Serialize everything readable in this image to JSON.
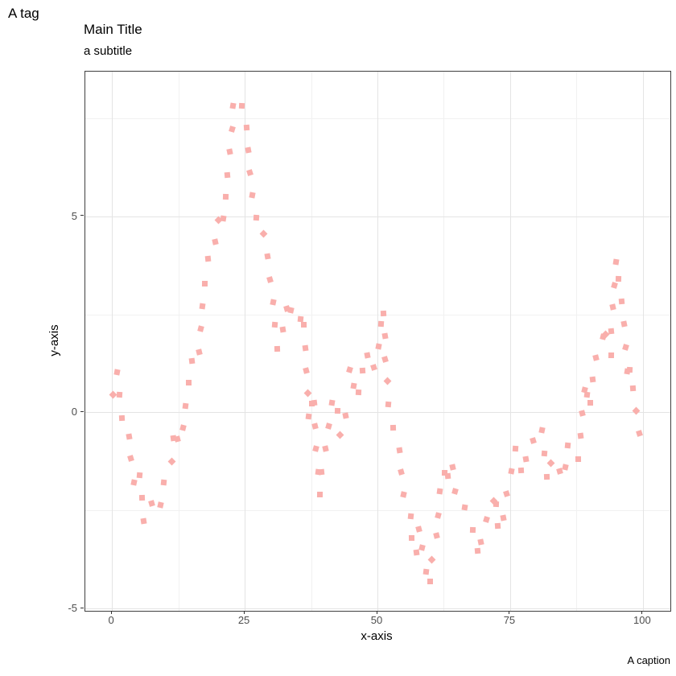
{
  "chart_data": {
    "type": "scatter",
    "tag": "A tag",
    "title": "Main Title",
    "subtitle": "a subtitle",
    "caption": "A caption",
    "xlabel": "x-axis",
    "ylabel": "y-axis",
    "xlim": [
      -5.1,
      105.1
    ],
    "ylim": [
      -5.05,
      8.69
    ],
    "x_major_ticks": [
      0,
      25,
      50,
      75,
      100
    ],
    "x_minor_gridlines": [
      12.5,
      37.5,
      62.5,
      87.5
    ],
    "y_major_ticks": [
      -5,
      0,
      5
    ],
    "y_minor_gridlines": [
      -2.5,
      2.5,
      7.5
    ],
    "grid": true,
    "legend": "none",
    "point_color": "#f9afac",
    "point_shape": "square",
    "points": [
      [
        0.2,
        0.46
      ],
      [
        1.0,
        1.02
      ],
      [
        1.4,
        0.44
      ],
      [
        1.9,
        -0.15
      ],
      [
        3.2,
        -0.61
      ],
      [
        3.6,
        -1.18
      ],
      [
        4.2,
        -1.78
      ],
      [
        5.2,
        -1.61
      ],
      [
        5.6,
        -2.17
      ],
      [
        6.0,
        -2.78
      ],
      [
        7.5,
        -2.33
      ],
      [
        9.1,
        -2.37
      ],
      [
        9.8,
        -1.78
      ],
      [
        11.2,
        -1.26
      ],
      [
        11.5,
        -0.65
      ],
      [
        12.4,
        -0.67
      ],
      [
        13.4,
        -0.4
      ],
      [
        13.9,
        0.17
      ],
      [
        14.5,
        0.75
      ],
      [
        15.1,
        1.32
      ],
      [
        16.4,
        1.53
      ],
      [
        16.8,
        2.13
      ],
      [
        17.1,
        2.71
      ],
      [
        17.5,
        3.29
      ],
      [
        18.1,
        3.91
      ],
      [
        19.5,
        4.35
      ],
      [
        20.0,
        4.91
      ],
      [
        21.0,
        4.94
      ],
      [
        21.5,
        5.5
      ],
      [
        21.8,
        6.06
      ],
      [
        22.2,
        6.64
      ],
      [
        22.6,
        7.22
      ],
      [
        22.8,
        7.81
      ],
      [
        24.4,
        7.82
      ],
      [
        25.3,
        7.26
      ],
      [
        25.6,
        6.68
      ],
      [
        26.0,
        6.11
      ],
      [
        26.4,
        5.53
      ],
      [
        27.2,
        4.97
      ],
      [
        28.6,
        4.55
      ],
      [
        29.3,
        3.97
      ],
      [
        29.8,
        3.39
      ],
      [
        30.3,
        2.82
      ],
      [
        30.7,
        2.23
      ],
      [
        31.2,
        1.61
      ],
      [
        32.2,
        2.11
      ],
      [
        32.9,
        2.64
      ],
      [
        33.7,
        2.6
      ],
      [
        35.5,
        2.37
      ],
      [
        36.2,
        2.23
      ],
      [
        36.5,
        1.64
      ],
      [
        36.6,
        1.06
      ],
      [
        36.9,
        0.49
      ],
      [
        37.0,
        -0.11
      ],
      [
        37.6,
        0.22
      ],
      [
        38.1,
        0.24
      ],
      [
        38.2,
        -0.36
      ],
      [
        38.4,
        -0.93
      ],
      [
        38.8,
        -1.51
      ],
      [
        39.1,
        -2.09
      ],
      [
        39.5,
        -1.52
      ],
      [
        40.2,
        -0.93
      ],
      [
        40.8,
        -0.36
      ],
      [
        41.5,
        0.24
      ],
      [
        42.5,
        0.03
      ],
      [
        43.0,
        -0.57
      ],
      [
        44.0,
        -0.09
      ],
      [
        44.7,
        1.08
      ],
      [
        45.5,
        0.68
      ],
      [
        46.5,
        0.51
      ],
      [
        47.2,
        1.07
      ],
      [
        48.1,
        1.45
      ],
      [
        49.3,
        1.14
      ],
      [
        50.2,
        1.69
      ],
      [
        50.7,
        2.25
      ],
      [
        51.1,
        2.53
      ],
      [
        51.4,
        1.95
      ],
      [
        51.5,
        1.35
      ],
      [
        51.9,
        0.8
      ],
      [
        52.1,
        0.2
      ],
      [
        52.9,
        -0.39
      ],
      [
        54.1,
        -0.96
      ],
      [
        54.4,
        -1.53
      ],
      [
        54.9,
        -2.09
      ],
      [
        56.3,
        -2.65
      ],
      [
        56.5,
        -3.2
      ],
      [
        57.3,
        -3.58
      ],
      [
        57.8,
        -2.97
      ],
      [
        58.4,
        -3.45
      ],
      [
        59.2,
        -4.06
      ],
      [
        59.9,
        -4.32
      ],
      [
        60.2,
        -3.75
      ],
      [
        61.1,
        -3.15
      ],
      [
        61.4,
        -2.62
      ],
      [
        61.7,
        -2.01
      ],
      [
        62.6,
        -1.55
      ],
      [
        63.2,
        -1.62
      ],
      [
        64.2,
        -1.39
      ],
      [
        64.7,
        -2.01
      ],
      [
        66.4,
        -2.43
      ],
      [
        67.9,
        -2.99
      ],
      [
        68.8,
        -3.54
      ],
      [
        69.5,
        -3.31
      ],
      [
        70.5,
        -2.74
      ],
      [
        71.9,
        -2.25
      ],
      [
        72.4,
        -2.35
      ],
      [
        72.6,
        -2.9
      ],
      [
        73.7,
        -2.69
      ],
      [
        74.3,
        -2.08
      ],
      [
        75.2,
        -1.49
      ],
      [
        76.0,
        -0.93
      ],
      [
        77.0,
        -1.47
      ],
      [
        77.9,
        -1.2
      ],
      [
        79.3,
        -0.71
      ],
      [
        81.0,
        -0.45
      ],
      [
        81.4,
        -1.04
      ],
      [
        81.9,
        -1.65
      ],
      [
        82.6,
        -1.3
      ],
      [
        84.4,
        -1.5
      ],
      [
        85.4,
        -1.39
      ],
      [
        85.9,
        -0.85
      ],
      [
        87.8,
        -1.2
      ],
      [
        88.2,
        -0.6
      ],
      [
        88.6,
        -0.02
      ],
      [
        89.0,
        0.58
      ],
      [
        89.5,
        0.44
      ],
      [
        90.1,
        0.25
      ],
      [
        90.6,
        0.83
      ],
      [
        91.1,
        1.4
      ],
      [
        92.5,
        1.93
      ],
      [
        93.0,
        1.98
      ],
      [
        94.0,
        1.45
      ],
      [
        94.0,
        2.08
      ],
      [
        94.4,
        2.68
      ],
      [
        94.7,
        3.25
      ],
      [
        94.9,
        3.83
      ],
      [
        95.4,
        3.4
      ],
      [
        96.0,
        2.84
      ],
      [
        96.4,
        2.25
      ],
      [
        96.7,
        1.67
      ],
      [
        97.0,
        1.05
      ],
      [
        97.5,
        1.08
      ],
      [
        98.2,
        0.61
      ],
      [
        98.8,
        0.03
      ],
      [
        99.4,
        -0.54
      ]
    ]
  }
}
